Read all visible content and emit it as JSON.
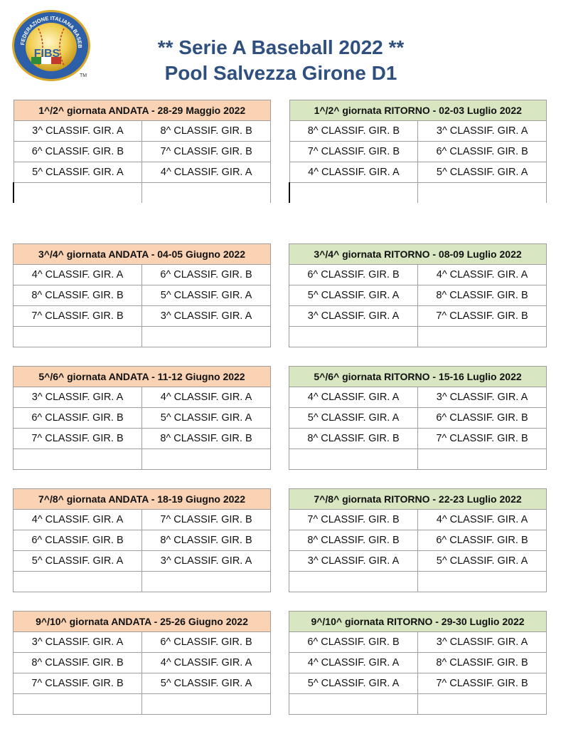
{
  "header": {
    "title_line1": "** Serie A Baseball 2022 **",
    "title_line2": "Pool Salvezza Girone D1",
    "logo_text": "FEDERAZIONE ITALIANA BASEBALL SOFTBALL",
    "logo_abbr": "FIBS",
    "logo_tm": "TM"
  },
  "rounds": [
    {
      "andata": {
        "heading": "1^/2^ giornata ANDATA - 28-29 Maggio 2022",
        "games": [
          [
            "3^ CLASSIF. GIR. A",
            "8^ CLASSIF. GIR. B"
          ],
          [
            "6^ CLASSIF. GIR. B",
            "7^ CLASSIF. GIR. B"
          ],
          [
            "5^ CLASSIF. GIR. A",
            "4^ CLASSIF. GIR. A"
          ]
        ]
      },
      "ritorno": {
        "heading": "1^/2^ giornata RITORNO - 02-03 Luglio 2022",
        "games": [
          [
            "8^ CLASSIF. GIR. B",
            "3^ CLASSIF. GIR. A"
          ],
          [
            "7^ CLASSIF. GIR. B",
            "6^ CLASSIF. GIR. B"
          ],
          [
            "4^ CLASSIF. GIR. A",
            "5^ CLASSIF. GIR. A"
          ]
        ]
      }
    },
    {
      "andata": {
        "heading": "3^/4^ giornata ANDATA - 04-05 Giugno 2022",
        "games": [
          [
            "4^ CLASSIF. GIR. A",
            "6^ CLASSIF. GIR. B"
          ],
          [
            "8^ CLASSIF. GIR. B",
            "5^ CLASSIF. GIR. A"
          ],
          [
            "7^ CLASSIF. GIR. B",
            "3^ CLASSIF. GIR. A"
          ]
        ]
      },
      "ritorno": {
        "heading": "3^/4^ giornata RITORNO - 08-09  Luglio 2022",
        "games": [
          [
            "6^ CLASSIF. GIR. B",
            "4^ CLASSIF. GIR. A"
          ],
          [
            "5^ CLASSIF. GIR. A",
            "8^ CLASSIF. GIR. B"
          ],
          [
            "3^ CLASSIF. GIR. A",
            "7^ CLASSIF. GIR. B"
          ]
        ]
      }
    },
    {
      "andata": {
        "heading": "5^/6^ giornata ANDATA - 11-12 Giugno 2022",
        "games": [
          [
            "3^ CLASSIF. GIR. A",
            "4^ CLASSIF. GIR. A"
          ],
          [
            "6^ CLASSIF. GIR. B",
            "5^ CLASSIF. GIR. A"
          ],
          [
            "7^ CLASSIF. GIR. B",
            "8^ CLASSIF. GIR. B"
          ]
        ]
      },
      "ritorno": {
        "heading": "5^/6^ giornata RITORNO - 15-16 Luglio 2022",
        "games": [
          [
            "4^ CLASSIF. GIR. A",
            "3^ CLASSIF. GIR. A"
          ],
          [
            "5^ CLASSIF. GIR. A",
            "6^ CLASSIF. GIR. B"
          ],
          [
            "8^ CLASSIF. GIR. B",
            "7^ CLASSIF. GIR. B"
          ]
        ]
      }
    },
    {
      "andata": {
        "heading": "7^/8^ giornata ANDATA - 18-19 Giugno 2022",
        "games": [
          [
            "4^ CLASSIF. GIR. A",
            "7^ CLASSIF. GIR. B"
          ],
          [
            "6^ CLASSIF. GIR. B",
            "8^ CLASSIF. GIR. B"
          ],
          [
            "5^ CLASSIF. GIR. A",
            "3^ CLASSIF. GIR. A"
          ]
        ]
      },
      "ritorno": {
        "heading": "7^/8^ giornata RITORNO - 22-23 Luglio 2022",
        "games": [
          [
            "7^ CLASSIF. GIR. B",
            "4^ CLASSIF. GIR. A"
          ],
          [
            "8^ CLASSIF. GIR. B",
            "6^ CLASSIF. GIR. B"
          ],
          [
            "3^ CLASSIF. GIR. A",
            "5^ CLASSIF. GIR. A"
          ]
        ]
      }
    },
    {
      "andata": {
        "heading": "9^/10^ giornata ANDATA - 25-26  Giugno 2022",
        "games": [
          [
            "3^ CLASSIF. GIR. A",
            "6^ CLASSIF. GIR. B"
          ],
          [
            "8^ CLASSIF. GIR. B",
            "4^ CLASSIF. GIR. A"
          ],
          [
            "7^ CLASSIF. GIR. B",
            "5^ CLASSIF. GIR. A"
          ]
        ]
      },
      "ritorno": {
        "heading": "9^/10^ giornata RITORNO - 29-30 Luglio 2022",
        "games": [
          [
            "6^ CLASSIF. GIR. B",
            "3^ CLASSIF. GIR. A"
          ],
          [
            "4^ CLASSIF. GIR. A",
            "8^ CLASSIF. GIR. B"
          ],
          [
            "5^ CLASSIF. GIR. A",
            "7^ CLASSIF. GIR. B"
          ]
        ]
      }
    }
  ]
}
